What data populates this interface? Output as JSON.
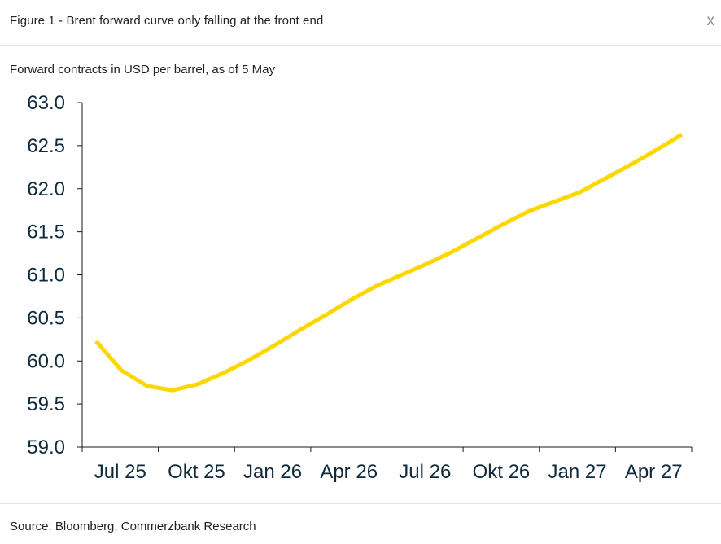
{
  "header": {
    "title": "Figure 1 - Brent forward curve only falling at the front end",
    "close_label": "x"
  },
  "subtitle": "Forward contracts in USD per barrel, as of 5 May",
  "footer": {
    "source": "Source: Bloomberg, Commerzbank Research"
  },
  "colors": {
    "line": "#FFD700",
    "axis": "#1a1a1a",
    "text": "#0f2a3a"
  },
  "chart_data": {
    "type": "line",
    "title": "Figure 1 - Brent forward curve only falling at the front end",
    "subtitle": "Forward contracts in USD per barrel, as of 5 May",
    "xlabel": "",
    "ylabel": "",
    "ylim": [
      59.0,
      63.0
    ],
    "yticks": [
      59.0,
      59.5,
      60.0,
      60.5,
      61.0,
      61.5,
      62.0,
      62.5,
      63.0
    ],
    "ytick_labels": [
      "59.0",
      "59.5",
      "60.0",
      "60.5",
      "61.0",
      "61.5",
      "62.0",
      "62.5",
      "63.0"
    ],
    "xtick_labels": [
      "Jul 25",
      "Okt 25",
      "Jan 26",
      "Apr 26",
      "Jul 26",
      "Okt 26",
      "Jan 27",
      "Apr 27"
    ],
    "x": [
      "Jul 25",
      "Aug 25",
      "Sep 25",
      "Okt 25",
      "Nov 25",
      "Dez 25",
      "Jan 26",
      "Feb 26",
      "Mar 26",
      "Apr 26",
      "Mai 26",
      "Jun 26",
      "Jul 26",
      "Aug 26",
      "Sep 26",
      "Okt 26",
      "Nov 26",
      "Dez 26",
      "Jan 27",
      "Feb 27",
      "Mar 27",
      "Apr 27",
      "Mai 27",
      "Jun 27"
    ],
    "series": [
      {
        "values": [
          60.23,
          59.89,
          59.71,
          59.66,
          59.73,
          59.86,
          60.01,
          60.18,
          60.36,
          60.53,
          60.71,
          60.87,
          61.0,
          61.13,
          61.27,
          61.43,
          61.59,
          61.74,
          61.85,
          61.96,
          62.12,
          62.28,
          62.45,
          62.63
        ]
      }
    ],
    "grid": false,
    "legend": "none"
  }
}
